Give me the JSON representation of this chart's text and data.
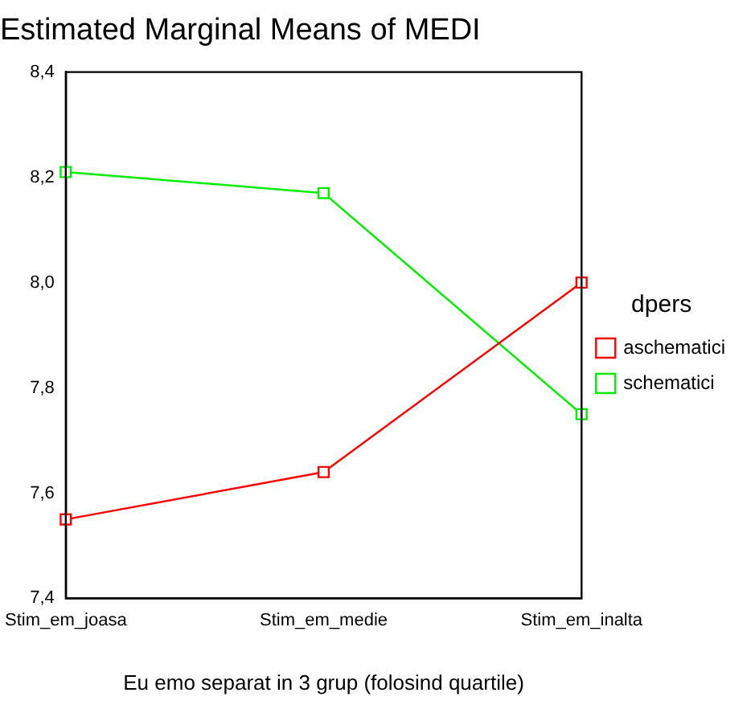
{
  "chart_data": {
    "type": "line",
    "title": "Estimated Marginal Means of MEDI",
    "xlabel": "Eu emo separat in 3 grup (folosind quartile)",
    "legend_title": "dpers",
    "categories": [
      "Stim_em_joasa",
      "Stim_em_medie",
      "Stim_em_inalta"
    ],
    "series": [
      {
        "name": "aschematici",
        "color": "#ff0000",
        "values": [
          7.55,
          7.64,
          8.0
        ]
      },
      {
        "name": "schematici",
        "color": "#00ee00",
        "values": [
          8.21,
          8.17,
          7.75
        ]
      }
    ],
    "ylim": [
      7.4,
      8.4
    ],
    "yticks": [
      {
        "value": 7.4,
        "label": "7,4"
      },
      {
        "value": 7.6,
        "label": "7,6"
      },
      {
        "value": 7.8,
        "label": "7,8"
      },
      {
        "value": 8.0,
        "label": "8,0"
      },
      {
        "value": 8.2,
        "label": "8,2"
      },
      {
        "value": 8.4,
        "label": "8,4"
      }
    ],
    "grid": false,
    "legend": "right",
    "marker": "square",
    "line_style": "solid"
  }
}
